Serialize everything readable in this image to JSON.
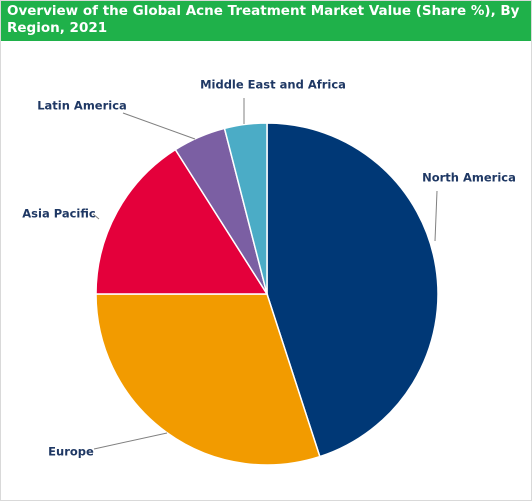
{
  "chart_data": {
    "type": "pie",
    "title": "Overview of the Global Acne Treatment Market Value (Share %), By Region, 2021",
    "categories": [
      "North America",
      "Europe",
      "Asia Pacific",
      "Latin America",
      "Middle East and Africa"
    ],
    "values": [
      45,
      30,
      16,
      5,
      4
    ],
    "colors": [
      "#003876",
      "#f29b00",
      "#e4003b",
      "#7b5fa3",
      "#4bacc6"
    ]
  }
}
